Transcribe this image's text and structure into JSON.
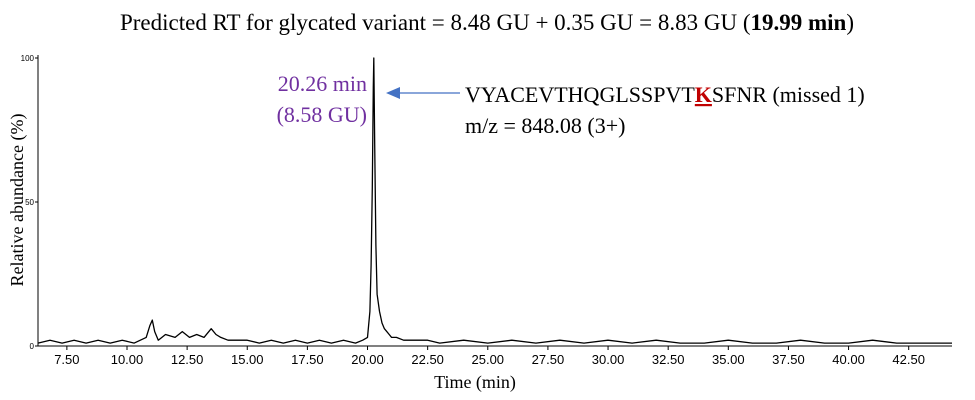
{
  "title": {
    "main": "Predicted RT for glycated variant = 8.48 GU + 0.35 GU = 8.83 GU (",
    "bold": "19.99 min",
    "close": ")"
  },
  "annotation": {
    "peak_rt": "20.26 min",
    "peak_gu": "(8.58 GU)",
    "peak_color": "#7030a0",
    "arrow_color": "#4472c4",
    "sequence_before": "VYACEVTHQGLSSPVT",
    "sequence_highlight": "K",
    "sequence_after": "SFNR (missed 1)",
    "highlight_color": "#c00000",
    "mz": "m/z = 848.08 (3+)"
  },
  "chart_data": {
    "type": "line",
    "title": "Predicted RT for glycated variant = 8.48 GU + 0.35 GU = 8.83 GU (19.99 min)",
    "xlabel": "Time (min)",
    "ylabel": "Relative abundance (%)",
    "xlim": [
      6.3,
      44.3
    ],
    "ylim": [
      0,
      100
    ],
    "x_ticks": [
      "7.50",
      "10.00",
      "12.50",
      "15.00",
      "17.50",
      "20.00",
      "22.50",
      "25.00",
      "27.50",
      "30.00",
      "32.50",
      "35.00",
      "37.50",
      "40.00",
      "42.50"
    ],
    "x_tick_values": [
      7.5,
      10,
      12.5,
      15,
      17.5,
      20,
      22.5,
      25,
      27.5,
      30,
      32.5,
      35,
      37.5,
      40,
      42.5
    ],
    "y_ticks": [
      "0",
      "50",
      "100"
    ],
    "y_tick_values": [
      0,
      50,
      100
    ],
    "grid": false,
    "series": [
      {
        "color": "#000000",
        "x": [
          6.3,
          6.8,
          7.3,
          7.8,
          8.3,
          8.8,
          9.3,
          9.8,
          10.3,
          10.8,
          10.95,
          11.05,
          11.15,
          11.3,
          11.6,
          12.0,
          12.3,
          12.6,
          12.9,
          13.2,
          13.5,
          13.7,
          13.9,
          14.2,
          14.6,
          15.0,
          15.5,
          16.0,
          16.5,
          17.0,
          17.5,
          18.0,
          18.5,
          19.0,
          19.5,
          19.8,
          20.0,
          20.1,
          20.15,
          20.2,
          20.24,
          20.26,
          20.3,
          20.35,
          20.4,
          20.5,
          20.6,
          20.7,
          20.8,
          20.9,
          21.0,
          21.2,
          21.5,
          22.0,
          22.5,
          23.0,
          24.0,
          25.0,
          26.0,
          27.0,
          28.0,
          29.0,
          30.0,
          31.0,
          32.0,
          33.0,
          34.0,
          35.0,
          36.0,
          37.0,
          38.0,
          39.0,
          40.0,
          41.0,
          42.0,
          43.0,
          44.3
        ],
        "y": [
          1,
          2,
          1,
          2,
          1,
          2,
          1,
          2,
          1,
          3,
          7,
          9,
          5,
          2,
          4,
          3,
          5,
          3,
          4,
          3,
          6,
          4,
          3,
          2,
          2,
          2,
          1,
          2,
          1,
          2,
          1,
          2,
          1,
          2,
          1,
          2,
          3,
          12,
          28,
          55,
          90,
          100,
          70,
          35,
          18,
          12,
          8,
          6,
          5,
          4,
          3,
          3,
          2,
          2,
          2,
          1,
          2,
          1,
          2,
          1,
          2,
          1,
          2,
          1,
          2,
          1,
          1,
          2,
          1,
          1,
          2,
          1,
          1,
          2,
          1,
          1,
          1
        ]
      }
    ]
  }
}
